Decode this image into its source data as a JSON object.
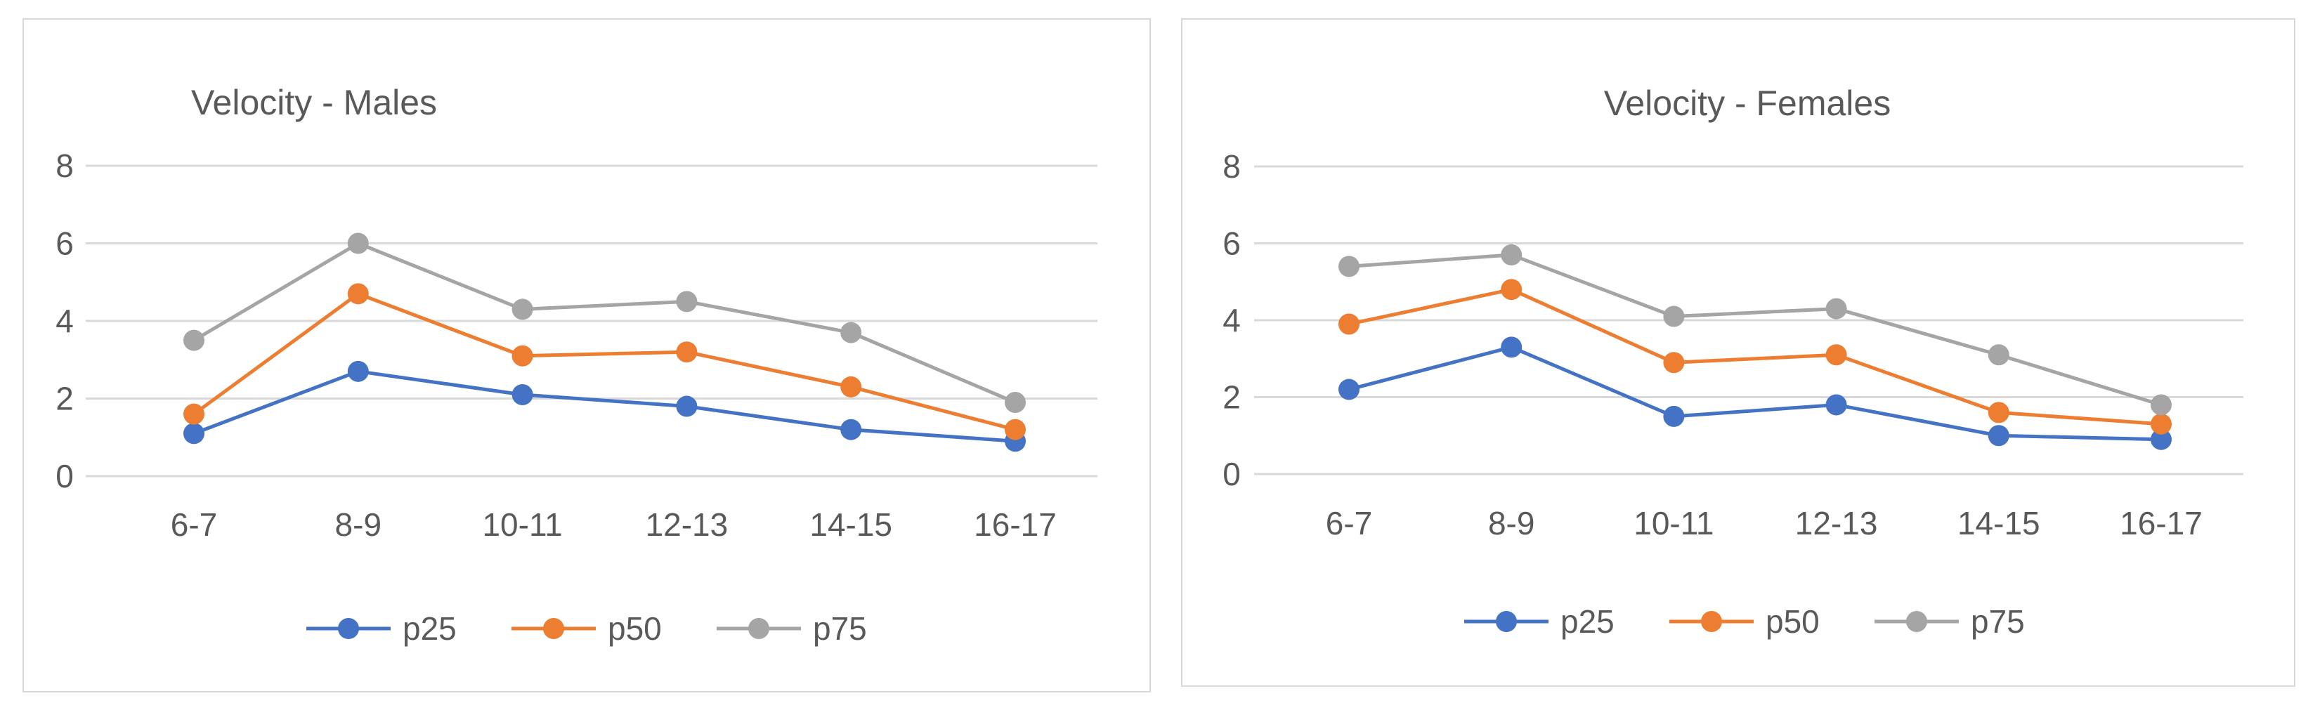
{
  "chart_data": [
    {
      "type": "line",
      "title": "Velocity - Males",
      "categories": [
        "6-7",
        "8-9",
        "10-11",
        "12-13",
        "14-15",
        "16-17"
      ],
      "xlabel": "",
      "ylabel": "",
      "ylim": [
        0,
        8
      ],
      "yticks": [
        0,
        2,
        4,
        6,
        8
      ],
      "grid": true,
      "legend_position": "bottom",
      "series": [
        {
          "name": "p25",
          "color": "#4472C4",
          "values": [
            1.1,
            2.7,
            2.1,
            1.8,
            1.2,
            0.9
          ]
        },
        {
          "name": "p50",
          "color": "#ED7D31",
          "values": [
            1.6,
            4.7,
            3.1,
            3.2,
            2.3,
            1.2
          ]
        },
        {
          "name": "p75",
          "color": "#A5A5A5",
          "values": [
            3.5,
            6.0,
            4.3,
            4.5,
            3.7,
            1.9
          ]
        }
      ]
    },
    {
      "type": "line",
      "title": "Velocity - Females",
      "categories": [
        "6-7",
        "8-9",
        "10-11",
        "12-13",
        "14-15",
        "16-17"
      ],
      "xlabel": "",
      "ylabel": "",
      "ylim": [
        0,
        8
      ],
      "yticks": [
        0,
        2,
        4,
        6,
        8
      ],
      "grid": true,
      "legend_position": "bottom",
      "series": [
        {
          "name": "p25",
          "color": "#4472C4",
          "values": [
            2.2,
            3.3,
            1.5,
            1.8,
            1.0,
            0.9
          ]
        },
        {
          "name": "p50",
          "color": "#ED7D31",
          "values": [
            3.9,
            4.8,
            2.9,
            3.1,
            1.6,
            1.3
          ]
        },
        {
          "name": "p75",
          "color": "#A5A5A5",
          "values": [
            5.4,
            5.7,
            4.1,
            4.3,
            3.1,
            1.8
          ]
        }
      ]
    }
  ]
}
